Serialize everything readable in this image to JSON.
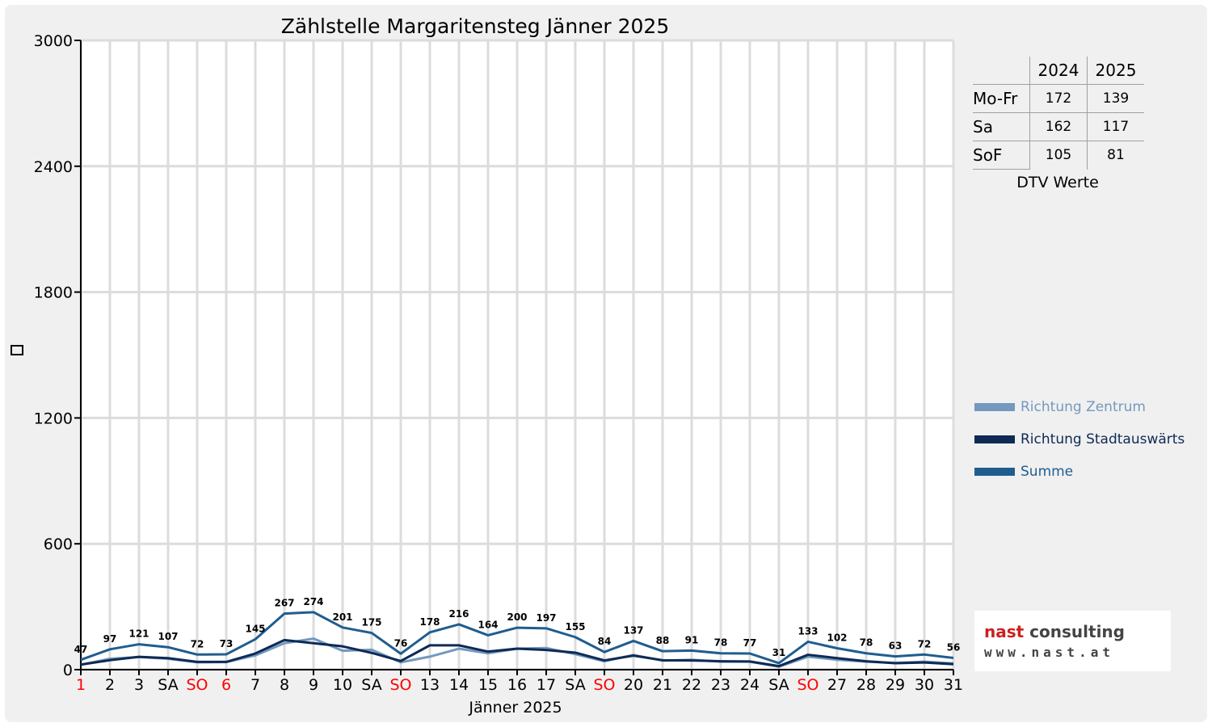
{
  "chart_data": {
    "type": "line",
    "title": "Zählstelle Margaritensteg Jänner 2025",
    "xlabel": "Jänner 2025",
    "ylabel": "",
    "ylim": [
      0,
      3000
    ],
    "yticks": [
      0,
      600,
      1200,
      1800,
      2400,
      3000
    ],
    "grid": true,
    "categories": [
      "1",
      "2",
      "3",
      "SA",
      "SO",
      "6",
      "7",
      "8",
      "9",
      "10",
      "SA",
      "SO",
      "13",
      "14",
      "15",
      "16",
      "17",
      "SA",
      "SO",
      "20",
      "21",
      "22",
      "23",
      "24",
      "SA",
      "SO",
      "27",
      "28",
      "29",
      "30",
      "31"
    ],
    "category_colors": [
      "#ff0000",
      "#000000",
      "#000000",
      "#000000",
      "#ff0000",
      "#ff0000",
      "#000000",
      "#000000",
      "#000000",
      "#000000",
      "#000000",
      "#ff0000",
      "#000000",
      "#000000",
      "#000000",
      "#000000",
      "#000000",
      "#000000",
      "#ff0000",
      "#000000",
      "#000000",
      "#000000",
      "#000000",
      "#000000",
      "#000000",
      "#ff0000",
      "#000000",
      "#000000",
      "#000000",
      "#000000",
      "#000000"
    ],
    "series": [
      {
        "name": "Richtung Zentrum",
        "color": "#7399be",
        "values": [
          23,
          52,
          60,
          52,
          35,
          36,
          68,
          126,
          148,
          90,
          95,
          35,
          62,
          100,
          78,
          100,
          103,
          74,
          40,
          70,
          43,
          47,
          38,
          38,
          14,
          62,
          47,
          38,
          32,
          38,
          30
        ]
      },
      {
        "name": "Richtung Stadtauswärts",
        "color": "#0e2a55",
        "values": [
          24,
          45,
          61,
          55,
          37,
          37,
          77,
          141,
          126,
          111,
          80,
          41,
          116,
          116,
          86,
          100,
          94,
          81,
          44,
          67,
          45,
          44,
          40,
          39,
          17,
          71,
          55,
          40,
          31,
          34,
          26
        ]
      },
      {
        "name": "Summe",
        "color": "#1f5d8f",
        "labeled": true,
        "values": [
          47,
          97,
          121,
          107,
          72,
          73,
          145,
          267,
          274,
          201,
          175,
          76,
          178,
          216,
          164,
          200,
          197,
          155,
          84,
          137,
          88,
          91,
          78,
          77,
          31,
          133,
          102,
          78,
          63,
          72,
          56
        ]
      }
    ]
  },
  "dtv_table": {
    "columns": [
      "",
      "2024",
      "2025"
    ],
    "rows": [
      {
        "label": "Mo-Fr",
        "v2024": "172",
        "v2025": "139"
      },
      {
        "label": "Sa",
        "v2024": "162",
        "v2025": "117"
      },
      {
        "label": "SoF",
        "v2024": "105",
        "v2025": "81"
      }
    ],
    "caption": "DTV Werte"
  },
  "legend": {
    "items": [
      {
        "label": "Richtung Zentrum",
        "color": "#7399be"
      },
      {
        "label": "Richtung Stadtauswärts",
        "color": "#0e2a55"
      },
      {
        "label": "Summe",
        "color": "#1f5d8f"
      }
    ]
  },
  "logo": {
    "brand_part1": "nast",
    "brand_part2": "consulting",
    "url": "www.nast.at"
  }
}
